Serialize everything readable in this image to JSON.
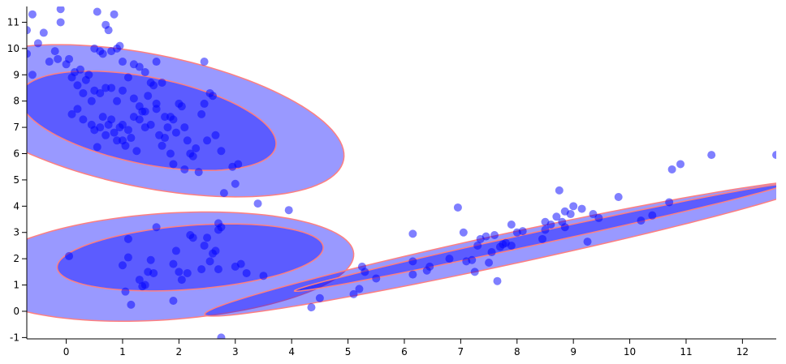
{
  "chart_data": {
    "type": "scatter",
    "xlim": [
      -0.7,
      12.6
    ],
    "ylim": [
      -1.05,
      11.6
    ],
    "x_ticks": [
      0,
      1,
      2,
      3,
      4,
      5,
      6,
      7,
      8,
      9,
      10,
      11,
      12
    ],
    "y_ticks": [
      -1,
      0,
      1,
      2,
      3,
      4,
      5,
      6,
      7,
      8,
      9,
      10,
      11
    ],
    "grid": false,
    "legend": "none",
    "colors": {
      "points": "#0000ff",
      "ellipse_fill": "#0000ff",
      "ellipse_stroke": "#ff7f7f"
    },
    "clusters": [
      {
        "id": "upper-left",
        "ellipses": {
          "inner": {
            "center": [
              1.45,
              7.25
            ],
            "semi_axes": [
              2.55,
              1.5
            ],
            "angle_deg": -34
          },
          "outer": {
            "center": [
              1.45,
              7.25
            ],
            "semi_axes": [
              3.9,
              2.3
            ],
            "angle_deg": -34
          }
        },
        "points": [
          [
            -0.7,
            10.7
          ],
          [
            -0.6,
            11.3
          ],
          [
            -0.5,
            10.2
          ],
          [
            -0.4,
            10.6
          ],
          [
            -0.3,
            9.5
          ],
          [
            -0.2,
            9.9
          ],
          [
            -0.15,
            9.6
          ],
          [
            -0.1,
            11.0
          ],
          [
            -0.1,
            11.5
          ],
          [
            0.0,
            9.4
          ],
          [
            0.05,
            9.6
          ],
          [
            0.1,
            8.9
          ],
          [
            0.15,
            9.1
          ],
          [
            0.2,
            8.6
          ],
          [
            0.25,
            9.2
          ],
          [
            0.3,
            8.3
          ],
          [
            0.35,
            8.8
          ],
          [
            0.4,
            9.0
          ],
          [
            0.45,
            8.0
          ],
          [
            0.5,
            8.4
          ],
          [
            0.5,
            10.0
          ],
          [
            0.55,
            11.4
          ],
          [
            0.6,
            9.9
          ],
          [
            0.65,
            9.8
          ],
          [
            0.7,
            10.9
          ],
          [
            0.75,
            10.7
          ],
          [
            0.8,
            9.9
          ],
          [
            0.85,
            11.3
          ],
          [
            0.9,
            10.0
          ],
          [
            0.95,
            10.1
          ],
          [
            -0.6,
            9.0
          ],
          [
            -0.7,
            9.8
          ],
          [
            0.1,
            7.5
          ],
          [
            0.2,
            7.7
          ],
          [
            0.3,
            7.3
          ],
          [
            0.45,
            7.1
          ],
          [
            0.5,
            6.9
          ],
          [
            0.55,
            6.25
          ],
          [
            0.6,
            7.0
          ],
          [
            0.65,
            7.4
          ],
          [
            0.7,
            6.7
          ],
          [
            0.75,
            7.1
          ],
          [
            0.8,
            7.3
          ],
          [
            0.85,
            6.8
          ],
          [
            0.9,
            6.5
          ],
          [
            0.95,
            7.0
          ],
          [
            1.0,
            7.1
          ],
          [
            1.0,
            6.5
          ],
          [
            1.05,
            6.3
          ],
          [
            1.1,
            6.9
          ],
          [
            1.15,
            6.6
          ],
          [
            1.2,
            7.4
          ],
          [
            1.25,
            6.1
          ],
          [
            1.3,
            7.8
          ],
          [
            1.35,
            7.6
          ],
          [
            1.4,
            7.0
          ],
          [
            1.45,
            8.2
          ],
          [
            1.5,
            7.1
          ],
          [
            1.55,
            8.6
          ],
          [
            1.6,
            7.7
          ],
          [
            1.65,
            6.7
          ],
          [
            1.7,
            6.3
          ],
          [
            1.75,
            7.4
          ],
          [
            1.8,
            7.0
          ],
          [
            1.85,
            6.0
          ],
          [
            1.9,
            7.3
          ],
          [
            1.95,
            6.8
          ],
          [
            2.0,
            7.9
          ],
          [
            2.05,
            7.8
          ],
          [
            2.1,
            7.0
          ],
          [
            2.15,
            6.5
          ],
          [
            2.2,
            6.0
          ],
          [
            2.25,
            5.9
          ],
          [
            2.3,
            6.2
          ],
          [
            2.35,
            5.3
          ],
          [
            2.4,
            7.5
          ],
          [
            2.45,
            7.9
          ],
          [
            2.5,
            6.5
          ],
          [
            2.55,
            8.3
          ],
          [
            2.6,
            8.2
          ],
          [
            2.65,
            6.7
          ],
          [
            2.75,
            6.1
          ],
          [
            1.0,
            8.4
          ],
          [
            1.1,
            8.9
          ],
          [
            1.2,
            9.4
          ],
          [
            1.3,
            9.3
          ],
          [
            1.4,
            9.1
          ],
          [
            1.5,
            8.7
          ],
          [
            1.6,
            9.5
          ],
          [
            1.7,
            8.7
          ],
          [
            0.8,
            8.5
          ],
          [
            0.9,
            8.0
          ],
          [
            0.7,
            8.5
          ],
          [
            0.6,
            8.3
          ],
          [
            1.2,
            8.1
          ],
          [
            1.3,
            7.3
          ],
          [
            1.4,
            7.6
          ],
          [
            1.6,
            7.9
          ],
          [
            1.75,
            6.6
          ],
          [
            1.85,
            7.4
          ],
          [
            2.1,
            5.4
          ],
          [
            1.9,
            5.6
          ],
          [
            2.45,
            9.5
          ],
          [
            1.0,
            9.5
          ]
        ]
      },
      {
        "id": "lower-left",
        "ellipses": {
          "inner": {
            "center": [
              2.2,
              2.05
            ],
            "semi_axes": [
              2.4,
              1.2
            ],
            "angle_deg": 12
          },
          "outer": {
            "center": [
              1.75,
              1.7
            ],
            "semi_axes": [
              3.4,
              2.0
            ],
            "angle_deg": 12
          }
        },
        "points": [
          [
            0.05,
            2.1
          ],
          [
            1.0,
            1.75
          ],
          [
            1.05,
            0.75
          ],
          [
            1.1,
            2.75
          ],
          [
            1.1,
            2.05
          ],
          [
            1.15,
            0.25
          ],
          [
            1.3,
            1.2
          ],
          [
            1.35,
            0.95
          ],
          [
            1.4,
            1.0
          ],
          [
            1.45,
            1.5
          ],
          [
            1.5,
            1.95
          ],
          [
            1.55,
            1.45
          ],
          [
            1.6,
            3.2
          ],
          [
            1.9,
            1.8
          ],
          [
            1.9,
            0.4
          ],
          [
            2.0,
            1.5
          ],
          [
            2.05,
            1.2
          ],
          [
            2.15,
            1.45
          ],
          [
            2.2,
            2.9
          ],
          [
            2.25,
            2.8
          ],
          [
            2.4,
            1.6
          ],
          [
            2.45,
            2.5
          ],
          [
            2.5,
            2.8
          ],
          [
            2.55,
            1.9
          ],
          [
            2.6,
            2.2
          ],
          [
            2.65,
            2.3
          ],
          [
            2.7,
            3.1
          ],
          [
            2.7,
            1.6
          ],
          [
            2.75,
            3.2
          ],
          [
            2.8,
            4.5
          ],
          [
            3.0,
            1.7
          ],
          [
            3.1,
            1.8
          ],
          [
            3.2,
            1.45
          ],
          [
            3.4,
            4.1
          ],
          [
            3.5,
            1.35
          ],
          [
            3.95,
            3.85
          ],
          [
            2.7,
            3.35
          ],
          [
            2.95,
            5.5
          ],
          [
            3.05,
            5.6
          ],
          [
            3.0,
            4.85
          ],
          [
            2.75,
            -1.0
          ],
          [
            1.95,
            2.3
          ]
        ]
      },
      {
        "id": "diagonal",
        "ellipses": {
          "inner": {
            "center": [
              8.4,
              2.8
            ],
            "semi_axes": [
              4.8,
              0.22
            ],
            "angle_deg": 25
          },
          "outer": {
            "center": [
              7.9,
              2.4
            ],
            "semi_axes": [
              6.0,
              0.55
            ],
            "angle_deg": 25
          }
        },
        "points": [
          [
            4.35,
            0.15
          ],
          [
            4.5,
            0.5
          ],
          [
            5.1,
            0.65
          ],
          [
            5.2,
            0.85
          ],
          [
            5.25,
            1.7
          ],
          [
            5.3,
            1.5
          ],
          [
            5.5,
            1.25
          ],
          [
            6.15,
            1.4
          ],
          [
            6.15,
            1.9
          ],
          [
            6.15,
            2.95
          ],
          [
            6.4,
            1.55
          ],
          [
            6.45,
            1.7
          ],
          [
            6.8,
            2.0
          ],
          [
            6.95,
            3.95
          ],
          [
            7.05,
            3.0
          ],
          [
            7.1,
            1.9
          ],
          [
            7.2,
            1.95
          ],
          [
            7.25,
            1.5
          ],
          [
            7.3,
            2.5
          ],
          [
            7.35,
            2.75
          ],
          [
            7.45,
            2.85
          ],
          [
            7.5,
            1.85
          ],
          [
            7.55,
            2.25
          ],
          [
            7.6,
            2.9
          ],
          [
            7.65,
            1.15
          ],
          [
            7.75,
            2.55
          ],
          [
            7.8,
            2.6
          ],
          [
            7.9,
            2.5
          ],
          [
            7.9,
            3.3
          ],
          [
            8.0,
            3.0
          ],
          [
            8.1,
            3.05
          ],
          [
            8.45,
            2.75
          ],
          [
            8.5,
            3.1
          ],
          [
            8.6,
            3.3
          ],
          [
            8.7,
            3.6
          ],
          [
            8.75,
            4.6
          ],
          [
            8.8,
            3.4
          ],
          [
            8.85,
            3.8
          ],
          [
            8.95,
            3.7
          ],
          [
            9.0,
            4.0
          ],
          [
            9.15,
            3.9
          ],
          [
            9.25,
            2.65
          ],
          [
            9.35,
            3.7
          ],
          [
            9.45,
            3.55
          ],
          [
            9.8,
            4.35
          ],
          [
            10.2,
            3.45
          ],
          [
            10.4,
            3.65
          ],
          [
            10.7,
            4.15
          ],
          [
            10.75,
            5.4
          ],
          [
            10.9,
            5.6
          ],
          [
            11.45,
            5.95
          ],
          [
            12.6,
            5.95
          ],
          [
            7.7,
            2.45
          ],
          [
            8.5,
            3.4
          ],
          [
            8.85,
            3.2
          ]
        ]
      }
    ]
  }
}
